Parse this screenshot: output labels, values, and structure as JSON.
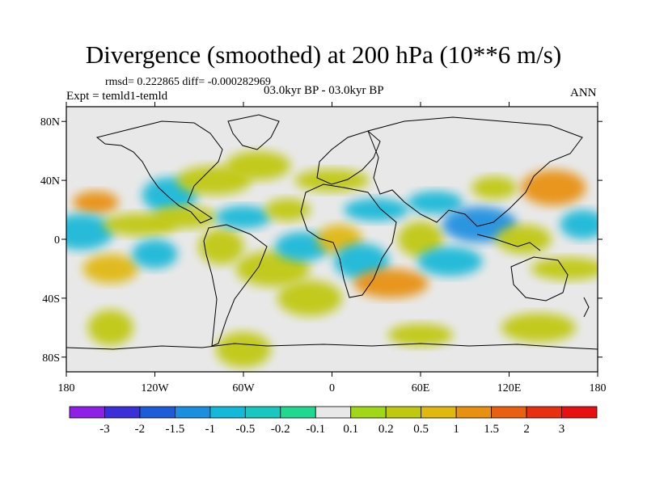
{
  "header": {
    "title": "Divergence (smoothed) at 200 hPa (10**6 m/s)",
    "stats": "rmsd= 0.222865 diff= -0.000282969",
    "experiment": "Expt = temld1-temld",
    "period": "03.0kyr BP - 03.0kyr BP",
    "season": "ANN"
  },
  "map": {
    "lat_labels": [
      "80N",
      "40N",
      "0",
      "40S",
      "80S"
    ],
    "lon_labels": [
      "180",
      "120W",
      "60W",
      "0",
      "60E",
      "120E",
      "180"
    ],
    "background_color": "#e8e8e8"
  },
  "colorbar": {
    "labels": [
      "-3",
      "-2",
      "-1.5",
      "-1",
      "-0.5",
      "-0.2",
      "-0.1",
      "0.1",
      "0.2",
      "0.5",
      "1",
      "1.5",
      "2",
      "3"
    ],
    "colors": [
      "#8f1ee6",
      "#3a2fd8",
      "#1c5cd8",
      "#1a8fe0",
      "#14b8d8",
      "#18c8c0",
      "#20d890",
      "#e8e8e8",
      "#a0d818",
      "#c0c810",
      "#e0b810",
      "#e89010",
      "#e86010",
      "#e83010",
      "#e81010"
    ]
  },
  "chart_data": {
    "type": "contour-map",
    "title": "Divergence (smoothed) at 200 hPa (10**6 m/s)",
    "projection": "cylindrical equidistant",
    "lon_range": [
      -180,
      180
    ],
    "lat_range": [
      -90,
      90
    ],
    "contour_levels": [
      -3,
      -2,
      -1.5,
      -1,
      -0.5,
      -0.2,
      -0.1,
      0.1,
      0.2,
      0.5,
      1,
      1.5,
      2,
      3
    ],
    "blobs": [
      {
        "lon": -160,
        "lat": 25,
        "value": 1.2
      },
      {
        "lon": -150,
        "lat": -20,
        "value": 1.0
      },
      {
        "lon": -170,
        "lat": 5,
        "value": -0.5
      },
      {
        "lon": -130,
        "lat": 10,
        "value": 0.5
      },
      {
        "lon": -120,
        "lat": -10,
        "value": -0.5
      },
      {
        "lon": -110,
        "lat": 30,
        "value": -0.5
      },
      {
        "lon": -100,
        "lat": 15,
        "value": 0.5
      },
      {
        "lon": -80,
        "lat": 40,
        "value": 0.5
      },
      {
        "lon": -75,
        "lat": -5,
        "value": 0.5
      },
      {
        "lon": -60,
        "lat": 15,
        "value": -0.5
      },
      {
        "lon": -50,
        "lat": 50,
        "value": 0.5
      },
      {
        "lon": -40,
        "lat": -20,
        "value": 0.5
      },
      {
        "lon": -30,
        "lat": 20,
        "value": 0.5
      },
      {
        "lon": -20,
        "lat": -5,
        "value": -0.5
      },
      {
        "lon": -15,
        "lat": -40,
        "value": 0.5
      },
      {
        "lon": 0,
        "lat": 40,
        "value": 0.5
      },
      {
        "lon": 5,
        "lat": 0,
        "value": 1.0
      },
      {
        "lon": 20,
        "lat": -15,
        "value": -0.5
      },
      {
        "lon": 30,
        "lat": 20,
        "value": -0.5
      },
      {
        "lon": 40,
        "lat": -30,
        "value": 1.2
      },
      {
        "lon": 60,
        "lat": 0,
        "value": 0.5
      },
      {
        "lon": 70,
        "lat": 25,
        "value": -0.5
      },
      {
        "lon": 80,
        "lat": -15,
        "value": -0.5
      },
      {
        "lon": 100,
        "lat": 10,
        "value": -1.0
      },
      {
        "lon": 110,
        "lat": 35,
        "value": 0.5
      },
      {
        "lon": 130,
        "lat": 0,
        "value": 0.5
      },
      {
        "lon": 150,
        "lat": 35,
        "value": 1.5
      },
      {
        "lon": 160,
        "lat": -20,
        "value": 0.5
      },
      {
        "lon": 170,
        "lat": 10,
        "value": -0.5
      },
      {
        "lon": -60,
        "lat": -75,
        "value": 0.5
      },
      {
        "lon": 60,
        "lat": -65,
        "value": 0.5
      },
      {
        "lon": 140,
        "lat": -60,
        "value": 0.5
      },
      {
        "lon": -150,
        "lat": -60,
        "value": 0.5
      }
    ]
  }
}
